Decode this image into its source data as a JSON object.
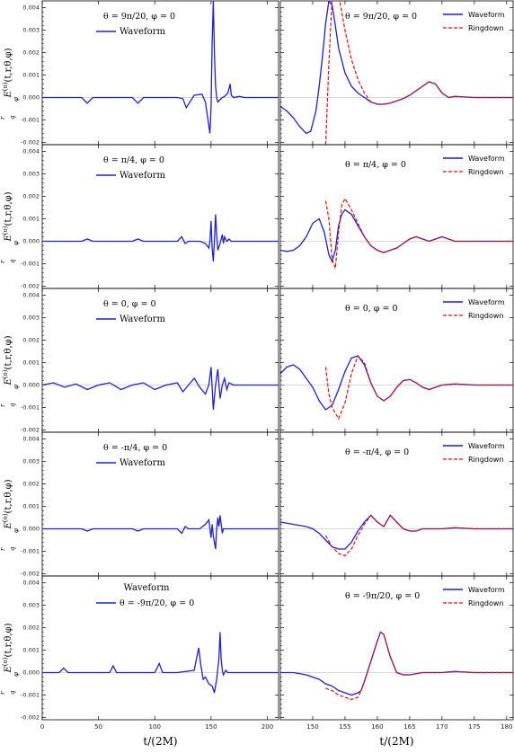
{
  "figure": {
    "xlabel_left": "t/(2M)",
    "xlabel_right": "t/(2M)",
    "ylabel": "r/q E_φ^(o)(t,r,θ,φ)",
    "ylabel_main": "E",
    "ylabel_sub": "φ",
    "ylabel_sup": "(o)",
    "ylabel_args": "(t,r,θ,φ)",
    "ylabel_r": "r",
    "ylabel_q": "q"
  },
  "colors": {
    "waveform": "#1f1fd6",
    "ringdown": "#e01010",
    "zero_line": "#b0b0b0",
    "axis": "#000000"
  },
  "chart_data": {
    "type": "line",
    "left_x_range": [
      0,
      210
    ],
    "left_x_ticks": [
      0,
      50,
      100,
      150,
      200
    ],
    "right_x_range": [
      145,
      181
    ],
    "right_x_ticks": [
      150,
      155,
      160,
      165,
      170,
      175,
      180
    ],
    "y_range": [
      -0.0021,
      0.0043
    ],
    "y_ticks": [
      "-0.002",
      "-0.001",
      "0.000",
      "0.001",
      "0.002",
      "0.003",
      "0.004"
    ],
    "y_tick_values": [
      -0.002,
      -0.001,
      0.0,
      0.001,
      0.002,
      0.003,
      0.004
    ],
    "legend_waveform": "Waveform",
    "legend_ringdown": "Ringdown",
    "rows": [
      {
        "angle_label": "θ = 9π/20, φ = 0",
        "left": {
          "x": [
            0,
            20,
            35,
            40,
            45,
            60,
            80,
            85,
            90,
            105,
            120,
            125,
            128,
            135,
            142,
            145,
            147,
            149,
            150,
            151,
            152,
            153,
            154,
            155,
            156,
            158,
            160,
            162,
            165,
            167,
            168,
            170,
            175,
            180,
            190,
            200,
            210
          ],
          "y": [
            0.0,
            0.0,
            0.0,
            -0.00025,
            0.0,
            0.0,
            0.0,
            -0.00025,
            0.0,
            0.0,
            0.0,
            -5e-05,
            -0.00045,
            0.0001,
            0.00015,
            -0.0002,
            -0.0009,
            -0.0016,
            -0.0004,
            0.0025,
            0.0043,
            0.002,
            0.0005,
            0.0,
            -0.0002,
            -0.0001,
            0.0,
            5e-05,
            0.0002,
            0.0006,
            0.0001,
            0.0,
            5e-05,
            0.0,
            0.0,
            0.0,
            0.0
          ]
        },
        "right": {
          "waveform_x": [
            145,
            146,
            147,
            148,
            149,
            149.7,
            150.5,
            151,
            151.5,
            152,
            152.5,
            153,
            153.5,
            154,
            155,
            156,
            157,
            158,
            159,
            160,
            161,
            162,
            163,
            164,
            165,
            166,
            167,
            168,
            169,
            170,
            171,
            172,
            175,
            178,
            181
          ],
          "waveform_y": [
            -0.0004,
            -0.0006,
            -0.0009,
            -0.0013,
            -0.0016,
            -0.0015,
            -0.0006,
            0.0005,
            0.0018,
            0.0033,
            0.0043,
            0.0041,
            0.0032,
            0.0022,
            0.0011,
            0.0005,
            0.0002,
            0.0,
            -0.0002,
            -0.0003,
            -0.0003,
            -0.00025,
            -0.00015,
            -5e-05,
            0.0001,
            0.0003,
            0.0005,
            0.0007,
            0.0006,
            0.0002,
            0.0,
            5e-05,
            0.0,
            0.0,
            0.0
          ],
          "ringdown_x": [
            152,
            152.5,
            153,
            153.5,
            154,
            155,
            156,
            157,
            158,
            159,
            160,
            161,
            162,
            163,
            164,
            165,
            166,
            167,
            168,
            169,
            170,
            171,
            172,
            175,
            178,
            181
          ],
          "ringdown_y": [
            -0.0021,
            0.0015,
            0.0045,
            0.005,
            0.0046,
            0.003,
            0.0017,
            0.0008,
            0.0002,
            -0.0002,
            -0.0003,
            -0.0003,
            -0.00025,
            -0.00015,
            -5e-05,
            0.0001,
            0.0003,
            0.0005,
            0.0007,
            0.0006,
            0.0002,
            0.0,
            5e-05,
            0.0,
            0.0,
            0.0
          ]
        }
      },
      {
        "angle_label": "θ = π/4, φ = 0",
        "left": {
          "x": [
            0,
            20,
            35,
            40,
            45,
            60,
            80,
            85,
            90,
            105,
            120,
            124,
            127,
            130,
            140,
            145,
            148,
            149,
            150,
            151,
            152,
            153,
            154,
            155,
            156,
            158,
            160,
            161,
            162,
            164,
            166,
            168,
            170,
            180,
            190,
            200,
            210
          ],
          "y": [
            0.0,
            0.0,
            0.0,
            0.0001,
            0.0,
            0.0,
            0.0,
            0.0001,
            0.0,
            0.0,
            0.0,
            0.0002,
            -0.0001,
            0.0,
            0.0,
            -0.0001,
            -0.0003,
            0.0,
            0.0009,
            -0.0003,
            -0.0009,
            0.0,
            0.0012,
            0.0003,
            -0.0004,
            -0.0001,
            0.0003,
            -0.0001,
            0.0002,
            0.0,
            0.0001,
            0.0,
            0.0,
            0.0,
            0.0,
            0.0,
            0.0
          ]
        },
        "right": {
          "waveform_x": [
            145,
            146,
            147,
            148,
            149,
            150,
            151,
            151.8,
            152.5,
            153,
            153.5,
            154,
            154.5,
            155,
            156,
            157,
            158,
            159,
            160,
            161,
            162,
            163,
            164,
            165,
            166,
            167,
            168,
            169,
            170,
            171,
            172,
            175,
            178,
            181
          ],
          "waveform_y": [
            -0.0004,
            -0.00045,
            -0.0004,
            -0.0002,
            0.0002,
            0.0008,
            0.001,
            0.0004,
            -0.0006,
            -0.0009,
            -0.0004,
            0.0007,
            0.0012,
            0.0014,
            0.0012,
            0.0007,
            0.0002,
            -0.0002,
            -0.0004,
            -0.0005,
            -0.0004,
            -0.0003,
            -0.0001,
            0.0001,
            0.0002,
            0.0001,
            0.0,
            0.0001,
            0.0002,
            0.0001,
            0.0,
            0.0,
            0.0,
            0.0
          ],
          "ringdown_x": [
            152,
            152.5,
            153,
            153.5,
            154,
            154.5,
            155,
            156,
            157,
            158,
            159,
            160,
            161,
            162,
            163,
            164,
            165,
            166,
            167,
            168,
            169,
            170,
            171,
            172,
            175,
            178,
            181
          ],
          "ringdown_y": [
            0.0018,
            0.001,
            -0.0008,
            -0.0012,
            0.0004,
            0.0016,
            0.0019,
            0.0014,
            0.0008,
            0.0002,
            -0.0002,
            -0.0004,
            -0.0005,
            -0.0004,
            -0.0003,
            -0.0001,
            0.0001,
            0.0002,
            0.0001,
            0.0,
            0.0001,
            0.0002,
            0.0001,
            0.0,
            0.0,
            0.0,
            0.0
          ]
        }
      },
      {
        "angle_label": "θ = 0, φ = 0",
        "left": {
          "x": [
            0,
            10,
            20,
            30,
            40,
            50,
            60,
            70,
            80,
            90,
            100,
            110,
            120,
            125,
            130,
            135,
            140,
            145,
            148,
            150,
            152,
            154,
            156,
            158,
            160,
            162,
            164,
            166,
            170,
            180,
            190,
            200,
            210
          ],
          "y": [
            0.0,
            0.0001,
            -0.0001,
            5e-05,
            -0.0002,
            0.0,
            0.0001,
            -0.0002,
            0.0,
            0.0001,
            -0.0002,
            0.0,
            0.0001,
            -0.0003,
            0.0,
            0.0003,
            -0.0001,
            -0.0004,
            0.0,
            0.0008,
            -0.0011,
            0.0,
            0.0007,
            -0.0006,
            0.0,
            0.0003,
            -0.0002,
            0.0001,
            0.0,
            0.0,
            0.0,
            0.0,
            0.0
          ]
        },
        "right": {
          "waveform_x": [
            145,
            146,
            147,
            148,
            149,
            150,
            151,
            152,
            153,
            154,
            155,
            156,
            157,
            158,
            159,
            160,
            161,
            162,
            163,
            164,
            165,
            166,
            167,
            168,
            169,
            170,
            172,
            175,
            178,
            181
          ],
          "waveform_y": [
            0.0005,
            0.0008,
            0.0009,
            0.0007,
            0.0003,
            -0.0001,
            -0.0007,
            -0.0011,
            -0.0009,
            -0.0002,
            0.0006,
            0.0012,
            0.0013,
            0.0009,
            0.0001,
            -0.0005,
            -0.0007,
            -0.0005,
            -0.0001,
            0.0002,
            0.00025,
            0.0001,
            -0.0001,
            -0.0002,
            -0.0001,
            0.0,
            5e-05,
            0.0,
            0.0,
            0.0
          ]
        },
        "ringdown_note": "",
        "right_ringdown": {
          "x": [
            152,
            152.5,
            153,
            154,
            155,
            156,
            157,
            158,
            159,
            160,
            161,
            162,
            163,
            164,
            165,
            166,
            167,
            168,
            169,
            170,
            172,
            175,
            178,
            181
          ],
          "y": [
            0.0008,
            -0.0004,
            -0.001,
            -0.0015,
            -0.0008,
            0.0005,
            0.0013,
            0.001,
            0.0001,
            -0.0005,
            -0.0007,
            -0.0005,
            -0.0001,
            0.0002,
            0.00025,
            0.0001,
            -0.0001,
            -0.0002,
            -0.0001,
            0.0,
            5e-05,
            0.0,
            0.0,
            0.0
          ]
        }
      },
      {
        "angle_label": "θ = -π/4, φ = 0",
        "left": {
          "x": [
            0,
            20,
            35,
            40,
            45,
            60,
            80,
            85,
            90,
            105,
            120,
            124,
            127,
            130,
            140,
            145,
            148,
            150,
            151,
            152,
            153,
            154,
            155,
            156,
            157,
            158,
            160,
            161,
            162,
            164,
            166,
            168,
            170,
            180,
            190,
            200,
            210
          ],
          "y": [
            0.0,
            0.0,
            0.0,
            -0.0001,
            0.0,
            0.0,
            0.0,
            -0.0001,
            0.0,
            0.0,
            0.0,
            -0.0002,
            0.0001,
            0.0,
            0.0,
            0.0002,
            0.0004,
            -0.0004,
            0.0002,
            -0.0003,
            -0.0006,
            -0.0009,
            0.0,
            0.0005,
            0.0001,
            0.0006,
            -0.0002,
            0.0,
            0.0,
            0.0,
            0.0,
            0.0,
            0.0,
            0.0,
            0.0,
            0.0,
            0.0
          ]
        },
        "right": {
          "waveform_x": [
            145,
            147,
            149,
            150,
            151,
            152,
            153,
            154,
            155,
            156,
            157,
            158,
            159,
            160,
            161,
            162,
            163,
            164,
            165,
            166,
            167,
            168,
            170,
            172,
            175,
            178,
            181
          ],
          "waveform_y": [
            0.0003,
            0.0002,
            0.0001,
            0.0,
            -0.0002,
            -0.0005,
            -0.0008,
            -0.0009,
            -0.0009,
            -0.0006,
            -0.0001,
            0.0003,
            0.0006,
            0.0003,
            0.0001,
            0.0006,
            0.0003,
            0.0,
            -0.0001,
            -0.0001,
            0.0,
            0.0,
            0.0,
            5e-05,
            0.0,
            0.0,
            0.0
          ]
        },
        "right_ringdown": {
          "x": [
            152,
            153,
            154,
            155,
            156,
            157,
            158,
            159,
            160,
            161,
            162,
            163,
            164,
            165,
            166,
            167,
            168,
            170,
            172,
            175,
            178,
            181
          ],
          "y": [
            -0.0003,
            -0.0008,
            -0.0011,
            -0.0012,
            -0.0009,
            -0.0003,
            0.0002,
            0.0006,
            0.0003,
            0.0001,
            0.0006,
            0.0003,
            0.0,
            -0.0001,
            -0.0001,
            0.0,
            0.0,
            0.0,
            5e-05,
            0.0,
            0.0,
            0.0
          ]
        }
      },
      {
        "angle_label": "θ = -9π/20, φ = 0",
        "left": {
          "x": [
            0,
            15,
            19,
            23,
            40,
            60,
            63,
            66,
            80,
            100,
            104,
            107,
            120,
            135,
            139,
            141,
            143,
            145,
            148,
            151,
            153,
            155,
            157,
            158,
            159,
            160,
            161,
            162,
            163,
            165,
            170,
            180,
            190,
            200,
            210
          ],
          "y": [
            0.0,
            0.0,
            0.0002,
            0.0,
            0.0,
            0.0,
            0.0003,
            0.0,
            0.0,
            0.0,
            0.0004,
            0.0,
            0.0,
            0.0001,
            0.0011,
            0.0003,
            -0.0003,
            -0.0002,
            -0.0005,
            -0.0006,
            -0.0009,
            -0.0003,
            0.0006,
            0.0018,
            0.0006,
            0.0001,
            -0.0001,
            0.0,
            0.0001,
            0.0,
            0.0,
            0.0,
            0.0,
            0.0,
            0.0
          ]
        },
        "right": {
          "waveform_x": [
            145,
            147,
            149,
            150,
            151,
            152,
            153,
            154,
            155,
            156,
            157,
            157.5,
            158,
            159,
            160,
            160.5,
            161,
            162,
            163,
            164,
            165,
            167,
            170,
            172,
            175,
            178,
            181
          ],
          "waveform_y": [
            0.0,
            0.0,
            -0.0001,
            -0.0002,
            -0.0003,
            -0.0005,
            -0.0006,
            -0.0008,
            -0.0009,
            -0.001,
            -0.0009,
            -0.0008,
            -0.0004,
            0.0005,
            0.0014,
            0.0018,
            0.0017,
            0.0007,
            0.0,
            -0.0001,
            -0.0001,
            0.0,
            0.0,
            5e-05,
            0.0,
            0.0,
            0.0
          ]
        },
        "right_ringdown": {
          "x": [
            152,
            153,
            154,
            155,
            156,
            157,
            157.5,
            158,
            159,
            160,
            160.5,
            161,
            162,
            163,
            164,
            165,
            167,
            170,
            172,
            175,
            178,
            181
          ],
          "y": [
            -0.0007,
            -0.0008,
            -0.001,
            -0.0011,
            -0.0012,
            -0.0011,
            -0.0008,
            -0.0004,
            0.0005,
            0.0014,
            0.0018,
            0.0017,
            0.0007,
            0.0,
            -0.0001,
            -0.0001,
            0.0,
            0.0,
            5e-05,
            0.0,
            0.0,
            0.0
          ]
        }
      }
    ]
  }
}
